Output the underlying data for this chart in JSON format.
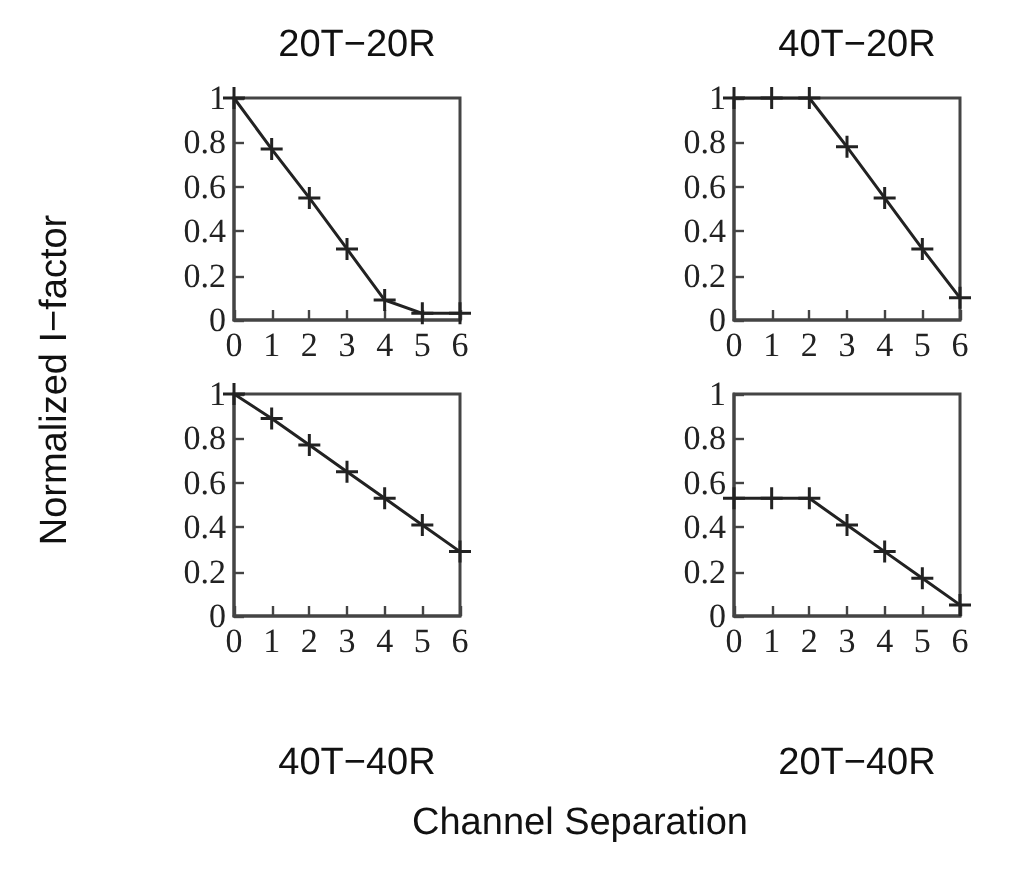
{
  "chart_data": [
    {
      "type": "line",
      "title": "20T−20R",
      "ylabel": "Normalized I−factor",
      "x": [
        0,
        1,
        2,
        3,
        4,
        5,
        6
      ],
      "series": [
        {
          "color": "#222222",
          "values": [
            1,
            0.77,
            0.55,
            0.32,
            0.09,
            0.03,
            0.03
          ]
        }
      ],
      "xlim": [
        0,
        6
      ],
      "xticks": [
        0,
        1,
        2,
        3,
        4,
        5,
        6
      ],
      "ylim": [
        0,
        1
      ],
      "yticks": [
        0,
        0.2,
        0.4,
        0.6,
        0.8,
        1
      ],
      "marker": "cross",
      "line_style": "solid",
      "grid": false
    },
    {
      "type": "line",
      "title": "40T−20R",
      "x": [
        0,
        1,
        2,
        3,
        4,
        5,
        6
      ],
      "series": [
        {
          "color": "#222222",
          "values": [
            1,
            1,
            1,
            0.78,
            0.55,
            0.32,
            0.1
          ]
        }
      ],
      "xlim": [
        0,
        6
      ],
      "xticks": [
        0,
        1,
        2,
        3,
        4,
        5,
        6
      ],
      "ylim": [
        0,
        1
      ],
      "yticks": [
        0,
        0.2,
        0.4,
        0.6,
        0.8,
        1
      ],
      "marker": "cross",
      "line_style": "solid",
      "grid": false
    },
    {
      "type": "line",
      "title": "40T−40R",
      "xlabel": "Channel Separation",
      "x": [
        0,
        1,
        2,
        3,
        4,
        5,
        6
      ],
      "series": [
        {
          "color": "#222222",
          "values": [
            1,
            0.89,
            0.77,
            0.65,
            0.53,
            0.41,
            0.29
          ]
        }
      ],
      "xlim": [
        0,
        6
      ],
      "xticks": [
        0,
        1,
        2,
        3,
        4,
        5,
        6
      ],
      "ylim": [
        0,
        1
      ],
      "yticks": [
        0,
        0.2,
        0.4,
        0.6,
        0.8,
        1
      ],
      "marker": "cross",
      "line_style": "solid",
      "grid": false
    },
    {
      "type": "line",
      "title": "20T−40R",
      "x": [
        0,
        1,
        2,
        3,
        4,
        5,
        6
      ],
      "series": [
        {
          "color": "#222222",
          "values": [
            0.53,
            0.53,
            0.53,
            0.41,
            0.29,
            0.17,
            0.05
          ]
        }
      ],
      "xlim": [
        0,
        6
      ],
      "xticks": [
        0,
        1,
        2,
        3,
        4,
        5,
        6
      ],
      "ylim": [
        0,
        1
      ],
      "yticks": [
        0,
        0.2,
        0.4,
        0.6,
        0.8,
        1
      ],
      "marker": "cross",
      "line_style": "solid",
      "grid": false
    }
  ]
}
